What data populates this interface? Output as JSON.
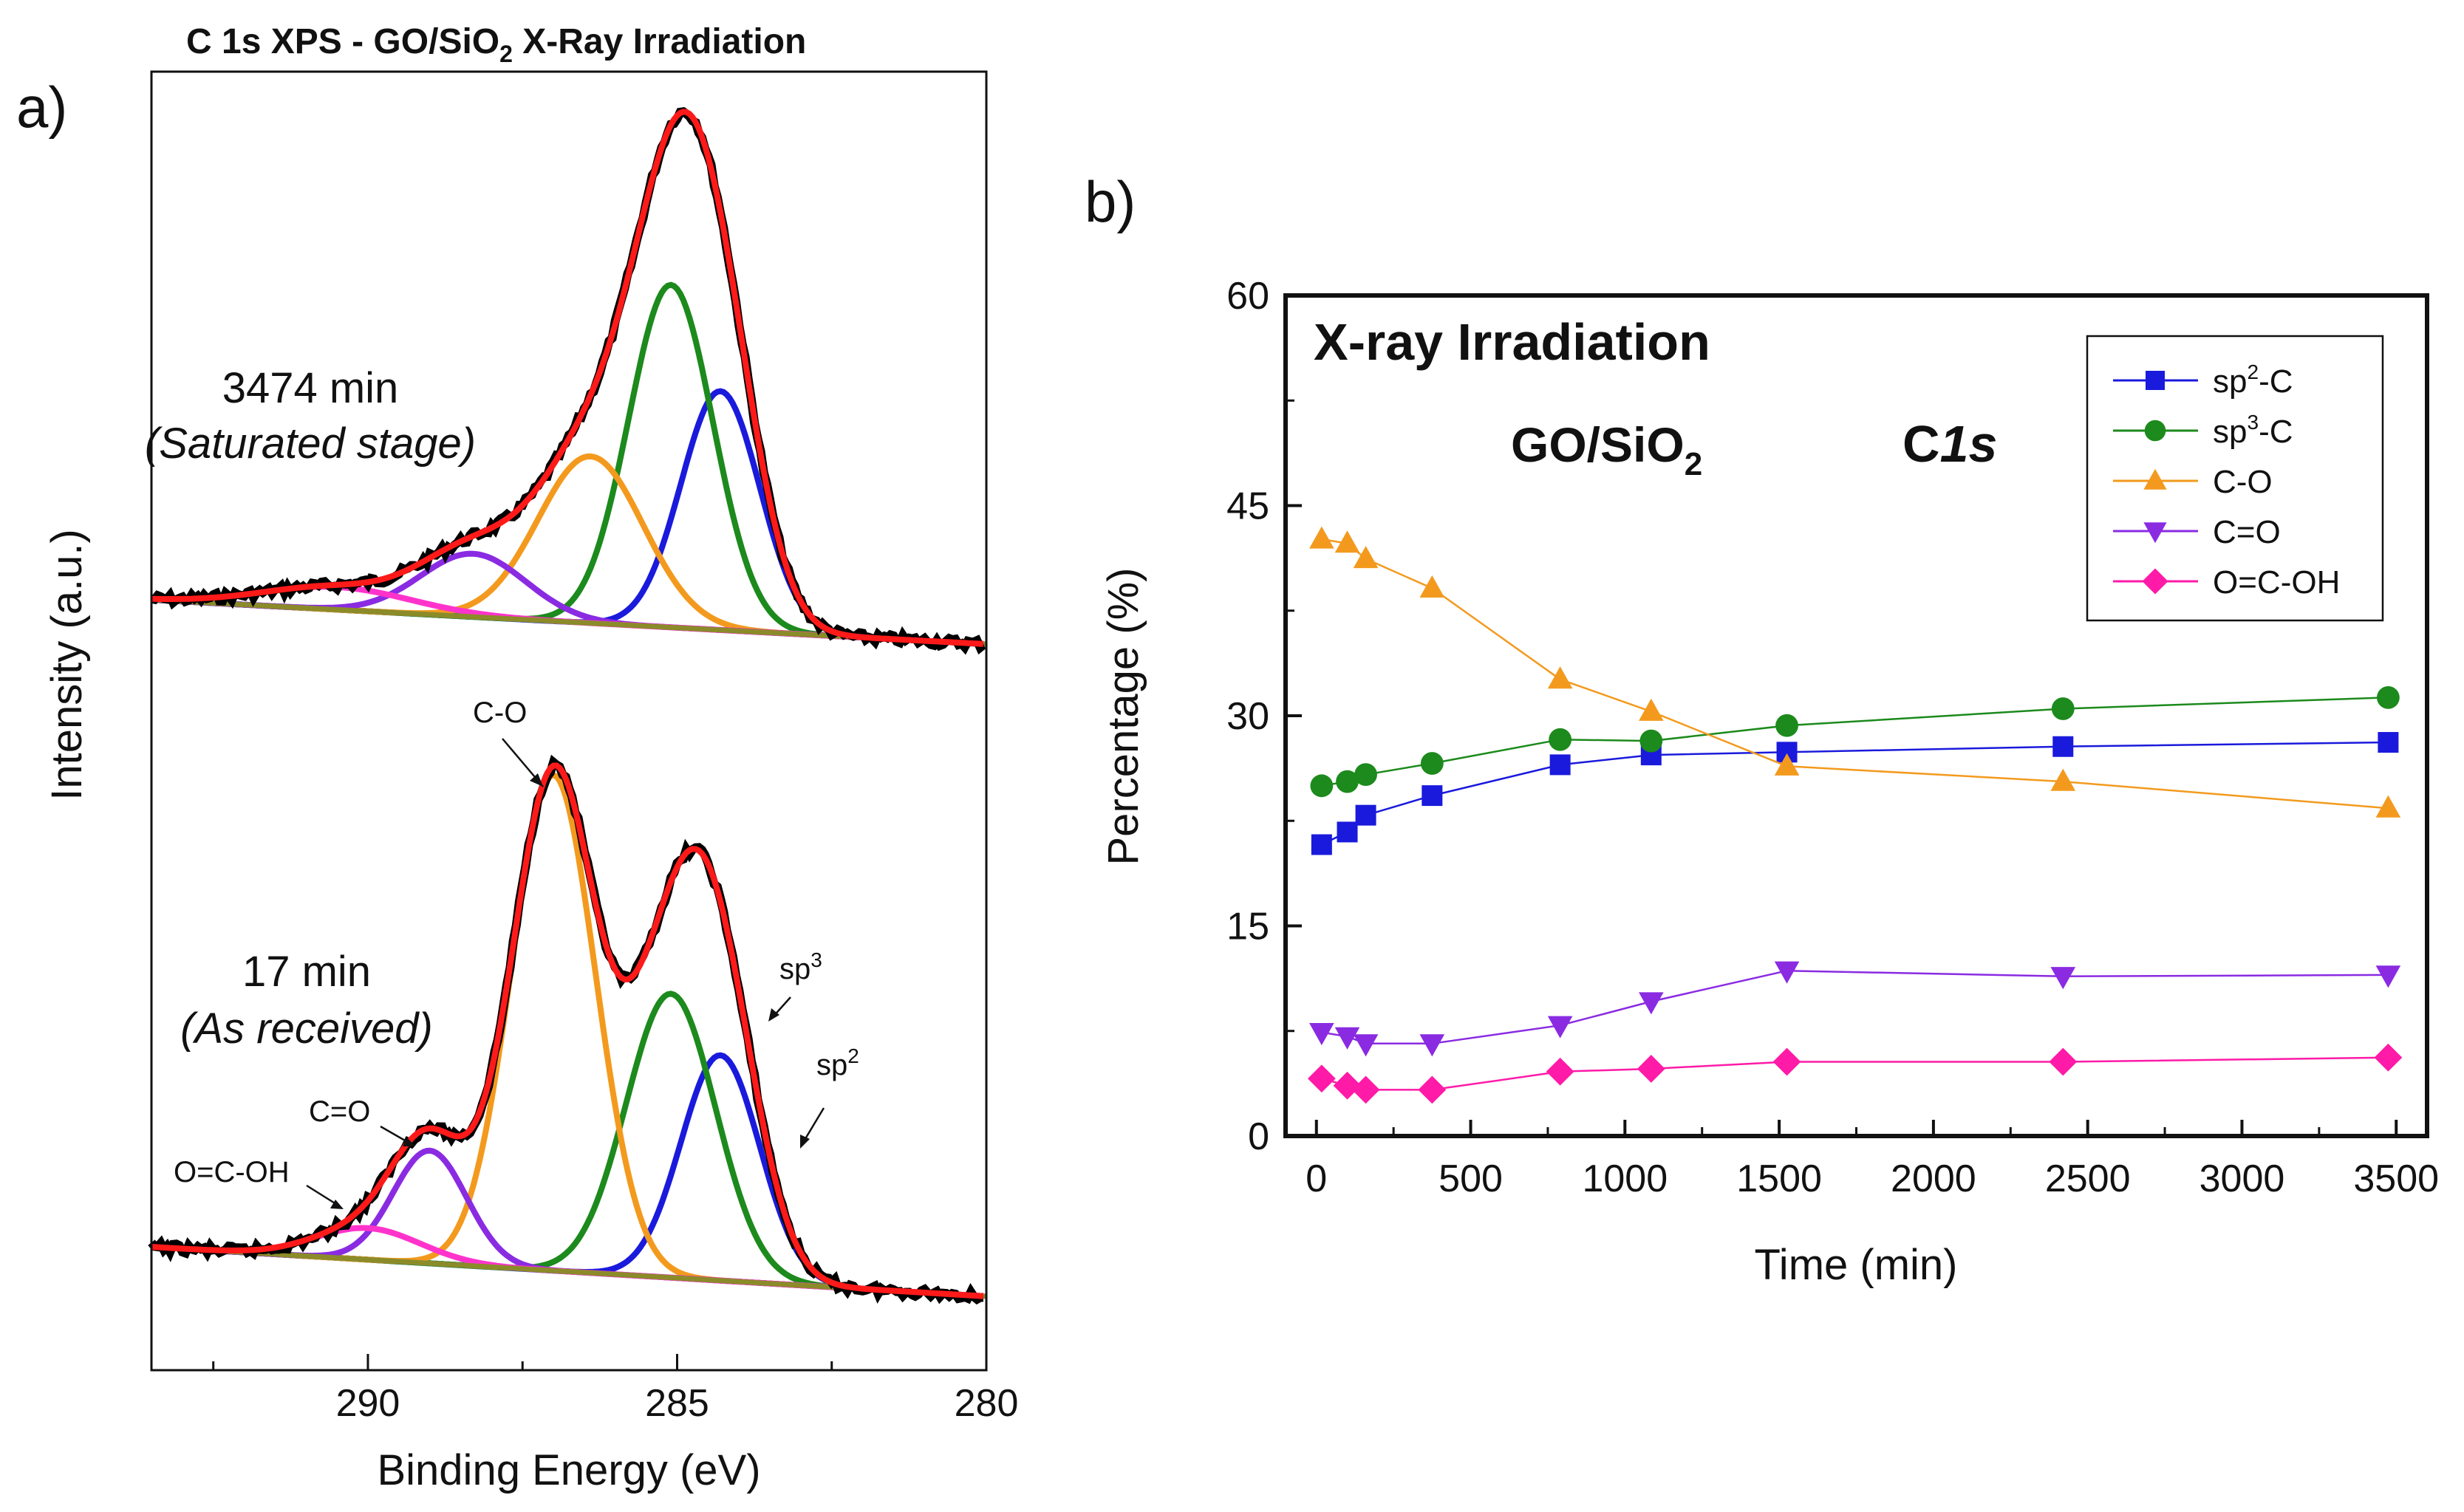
{
  "chart_data": [
    {
      "panel": "a)",
      "type": "line",
      "title": "C 1s XPS - GO/SiO",
      "title_subscript": "2",
      "title_suffix": " X-Ray Irradiation",
      "xlabel": "Binding Energy (eV)",
      "ylabel": "Intensity (a.u.)",
      "xlim": [
        293.5,
        280
      ],
      "x_reversed": true,
      "x_ticks": [
        290,
        285,
        280
      ],
      "x_ticklabels": [
        "290",
        "285",
        "280"
      ],
      "spectra": [
        {
          "label": "3474 min",
          "sublabel": "(Saturated stage)",
          "components": [
            {
              "name": "sp2-C",
              "color": "#1a1adc",
              "center": 284.3,
              "fwhm": 1.5,
              "height": 0.53
            },
            {
              "name": "sp3-C",
              "color": "#1c8a1c",
              "center": 285.1,
              "fwhm": 1.6,
              "height": 0.76
            },
            {
              "name": "C-O",
              "color": "#f39a1e",
              "center": 286.4,
              "fwhm": 2.0,
              "height": 0.37
            },
            {
              "name": "C=O",
              "color": "#8a2be2",
              "center": 288.3,
              "fwhm": 2.0,
              "height": 0.14
            },
            {
              "name": "O=C-OH",
              "color": "#ff33cc",
              "center": 290.5,
              "fwhm": 2.8,
              "height": 0.05
            }
          ]
        },
        {
          "label": "17 min",
          "sublabel": "(As received)",
          "components": [
            {
              "name": "sp2-C",
              "color": "#1a1adc",
              "center": 284.3,
              "fwhm": 1.5,
              "height": 0.5
            },
            {
              "name": "sp3-C",
              "color": "#1c8a1c",
              "center": 285.1,
              "fwhm": 1.7,
              "height": 0.63
            },
            {
              "name": "C-O",
              "color": "#f39a1e",
              "center": 287.0,
              "fwhm": 1.6,
              "height": 1.1
            },
            {
              "name": "C=O",
              "color": "#8a2be2",
              "center": 289.0,
              "fwhm": 1.4,
              "height": 0.25
            },
            {
              "name": "O=C-OH",
              "color": "#ff33cc",
              "center": 290.0,
              "fwhm": 2.0,
              "height": 0.07
            }
          ]
        }
      ],
      "fit_color": "#ff1a1a",
      "background_color": "#8b8b2a",
      "data_color": "#000000",
      "annotations": [
        "C-O",
        "sp",
        "sp",
        "C=O",
        "O=C-OH"
      ],
      "annotation_superscripts": [
        "3",
        "2"
      ]
    },
    {
      "panel": "b)",
      "type": "line",
      "inner_title": "X-ray Irradiation",
      "inner_sample": "GO/SiO",
      "inner_sample_subscript": "2",
      "inner_core_prefix": "C",
      "inner_core_italic": "1s",
      "xlabel": "Time (min)",
      "ylabel": "Percentage (%)",
      "xlim": [
        -100,
        3600
      ],
      "ylim": [
        0,
        60
      ],
      "x_ticks": [
        0,
        500,
        1000,
        1500,
        2000,
        2500,
        3000,
        3500
      ],
      "x_ticklabels": [
        "0",
        "500",
        "1000",
        "1500",
        "2000",
        "2500",
        "3000",
        "3500"
      ],
      "y_ticks": [
        0,
        15,
        30,
        45,
        60
      ],
      "y_ticklabels": [
        "0",
        "15",
        "30",
        "45",
        "60"
      ],
      "x": [
        17,
        100,
        160,
        375,
        790,
        1085,
        1525,
        2420,
        3474
      ],
      "series": [
        {
          "name_main": "sp",
          "name_sup": "2",
          "name_suffix": "-C",
          "marker": "square",
          "color": "#1a1adc",
          "values": [
            20.8,
            21.7,
            22.9,
            24.3,
            26.5,
            27.2,
            27.4,
            27.8,
            28.1
          ]
        },
        {
          "name_main": "sp",
          "name_sup": "3",
          "name_suffix": "-C",
          "marker": "circle",
          "color": "#1c8a1c",
          "values": [
            25.0,
            25.3,
            25.8,
            26.6,
            28.3,
            28.2,
            29.3,
            30.5,
            31.3
          ]
        },
        {
          "name_main": "C-O",
          "name_sup": "",
          "name_suffix": "",
          "marker": "triangle-up",
          "color": "#f39a1e",
          "values": [
            42.6,
            42.3,
            41.2,
            39.1,
            32.6,
            30.3,
            26.4,
            25.3,
            23.4
          ]
        },
        {
          "name_main": "C=O",
          "name_sup": "",
          "name_suffix": "",
          "marker": "triangle-down",
          "color": "#8a2be2",
          "values": [
            7.4,
            7.1,
            6.6,
            6.6,
            7.9,
            9.6,
            11.8,
            11.4,
            11.5
          ]
        },
        {
          "name_main": "O=C-OH",
          "name_sup": "",
          "name_suffix": "",
          "marker": "diamond",
          "color": "#ff1aa8",
          "values": [
            4.1,
            3.6,
            3.3,
            3.3,
            4.6,
            4.8,
            5.3,
            5.3,
            5.6
          ]
        }
      ],
      "legend_position": "top-right"
    }
  ]
}
